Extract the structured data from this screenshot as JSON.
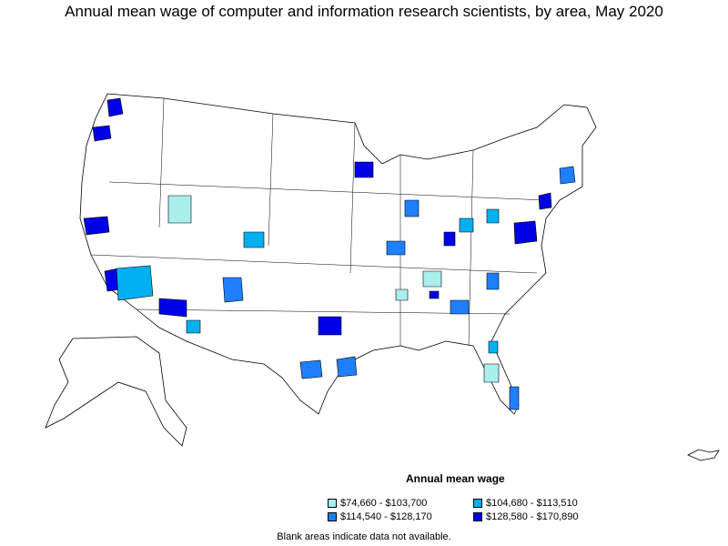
{
  "title": "Annual mean wage of computer and information research scientists, by area, May 2020",
  "legend": {
    "title": "Annual mean wage",
    "items": [
      {
        "label": "$74,660 - $103,700",
        "color": "#aaeeee"
      },
      {
        "label": "$104,680 - $113,510",
        "color": "#00b0f0"
      },
      {
        "label": "$114,540 - $128,170",
        "color": "#1e7fff"
      },
      {
        "label": "$128,580 - $170,890",
        "color": "#0000e6"
      }
    ]
  },
  "note": "Blank areas indicate data not available.",
  "colors": {
    "border": "#000000",
    "blank": "#ffffff"
  }
}
